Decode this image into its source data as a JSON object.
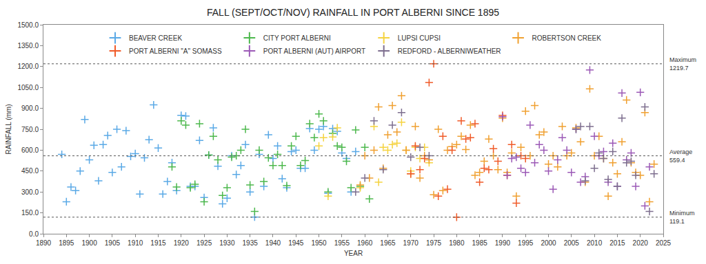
{
  "chart_data": {
    "type": "scatter",
    "title": "FALL (SEPT/OCT/NOV) RAINFALL IN PORT ALBERNI SINCE 1895",
    "x_label": "YEAR",
    "y_label": "RAINFALL (mm)",
    "marker": "cross",
    "grid": false,
    "legend": "top",
    "xlim": [
      1890,
      2025
    ],
    "xticks": [
      1890,
      1895,
      1900,
      1905,
      1910,
      1915,
      1920,
      1925,
      1930,
      1935,
      1940,
      1945,
      1950,
      1955,
      1960,
      1965,
      1970,
      1975,
      1980,
      1985,
      1990,
      1995,
      2000,
      2005,
      2010,
      2015,
      2020,
      2025
    ],
    "ylim": [
      0,
      1500
    ],
    "yticks": [
      {
        "value": 0,
        "label": "0.0"
      },
      {
        "value": 150,
        "label": "150.0"
      },
      {
        "value": 300,
        "label": "300.0"
      },
      {
        "value": 450,
        "label": "450.0"
      },
      {
        "value": 600,
        "label": "600.0"
      },
      {
        "value": 750,
        "label": "750.0"
      },
      {
        "value": 900,
        "label": "900.0"
      },
      {
        "value": 1050,
        "label": "1050.0"
      },
      {
        "value": 1200,
        "label": "1200.0"
      },
      {
        "value": 1350,
        "label": "1350.0"
      },
      {
        "value": 1500,
        "label": "1500.0"
      }
    ],
    "reference_lines": [
      {
        "label": "Maximum",
        "value": 1219.7
      },
      {
        "label": "Average",
        "value": 559.4
      },
      {
        "label": "Minimum",
        "value": 119.1
      }
    ],
    "series": [
      {
        "name": "BEAVER CREEK",
        "color": "#5aa9e6",
        "x": [
          1894,
          1895,
          1896,
          1897,
          1898,
          1899,
          1900,
          1901,
          1902,
          1903,
          1904,
          1905,
          1906,
          1907,
          1908,
          1909,
          1910,
          1911,
          1912,
          1913,
          1914,
          1915,
          1916,
          1917,
          1918,
          1919,
          1920,
          1921,
          1922,
          1923,
          1924,
          1925,
          1926,
          1927,
          1928,
          1929,
          1930,
          1931,
          1932,
          1933,
          1934,
          1935,
          1936,
          1937,
          1938,
          1939,
          1940,
          1941,
          1942,
          1943,
          1944,
          1945,
          1946,
          1947,
          1948,
          1949,
          1950,
          1951,
          1952,
          1953,
          1954,
          1955,
          1956,
          1957,
          1958
        ],
        "values": [
          570,
          230,
          335,
          310,
          450,
          820,
          530,
          635,
          380,
          640,
          705,
          440,
          750,
          480,
          740,
          555,
          575,
          285,
          545,
          675,
          925,
          615,
          285,
          375,
          510,
          310,
          850,
          845,
          340,
          340,
          670,
          260,
          565,
          760,
          485,
          215,
          255,
          560,
          425,
          490,
          640,
          300,
          120,
          570,
          340,
          710,
          540,
          630,
          395,
          330,
          590,
          600,
          470,
          470,
          755,
          600,
          750,
          770,
          290,
          755,
          735,
          580,
          540,
          300,
          590
        ]
      },
      {
        "name": "CITY PORT ALBERNI",
        "color": "#4cb84c",
        "x": [
          1918,
          1919,
          1920,
          1921,
          1922,
          1923,
          1924,
          1925,
          1926,
          1927,
          1928,
          1929,
          1930,
          1931,
          1932,
          1933,
          1934,
          1935,
          1936,
          1937,
          1938,
          1939,
          1940,
          1941,
          1942,
          1943,
          1944,
          1945,
          1946,
          1947,
          1948,
          1949,
          1950,
          1951,
          1952,
          1953,
          1954,
          1955,
          1956,
          1957,
          1958,
          1959,
          1960,
          1961
        ],
        "values": [
          480,
          335,
          810,
          780,
          330,
          355,
          790,
          230,
          565,
          700,
          530,
          275,
          330,
          550,
          560,
          600,
          750,
          350,
          160,
          600,
          375,
          545,
          490,
          570,
          490,
          345,
          630,
          700,
          490,
          525,
          790,
          690,
          860,
          810,
          300,
          720,
          630,
          620,
          520,
          330,
          745,
          340,
          620,
          250
        ]
      },
      {
        "name": "LUPSI CUPSI",
        "color": "#f5d33f",
        "x": [
          1950,
          1951,
          1952,
          1953,
          1954,
          1959,
          1962,
          1963,
          1964,
          1965,
          1966,
          1967,
          1968,
          1969,
          1970,
          1971,
          1972,
          1973,
          1974
        ],
        "values": [
          630,
          690,
          270,
          695,
          760,
          330,
          770,
          370,
          620,
          600,
          640,
          650,
          800,
          600,
          450,
          620,
          540,
          620,
          510
        ]
      },
      {
        "name": "ROBERTSON CREEK",
        "color": "#f0a030",
        "x": [
          1959,
          1960,
          1961,
          1962,
          1963,
          1964,
          1965,
          1966,
          1967,
          1968,
          1969,
          1970,
          1971,
          1972,
          1973,
          1974,
          1975,
          1976,
          1977,
          1978,
          1979,
          1980,
          1981,
          1982,
          1983,
          1984,
          1985,
          1986,
          1987,
          1988,
          1989,
          1990,
          1991,
          1992,
          1993,
          1994,
          1995,
          1996,
          1997,
          1998,
          1999,
          2000,
          2001,
          2002,
          2003,
          2004,
          2005,
          2006,
          2007,
          2008,
          2009,
          2010,
          2011,
          2012,
          2013,
          2014,
          2015,
          2016,
          2017,
          2018,
          2019,
          2020,
          2021,
          2022,
          2023
        ],
        "values": [
          350,
          560,
          400,
          600,
          910,
          470,
          710,
          920,
          730,
          990,
          600,
          430,
          770,
          400,
          560,
          530,
          280,
          750,
          310,
          600,
          625,
          640,
          700,
          605,
          780,
          420,
          440,
          520,
          680,
          560,
          460,
          830,
          440,
          580,
          270,
          620,
          880,
          560,
          920,
          710,
          730,
          500,
          560,
          480,
          770,
          560,
          580,
          760,
          660,
          370,
          1040,
          560,
          700,
          540,
          270,
          510,
          430,
          660,
          960,
          510,
          440,
          420,
          870,
          230,
          500
        ]
      },
      {
        "name": "PORT ALBERNI \"A\" SOMASS",
        "color": "#f05a28",
        "x": [
          1970,
          1971,
          1972,
          1973,
          1974,
          1975,
          1976,
          1977,
          1978,
          1979,
          1980,
          1981,
          1982,
          1983,
          1984,
          1985,
          1986,
          1987,
          1988,
          1989,
          1990,
          1991,
          1992,
          1993,
          1994,
          1995
        ],
        "values": [
          430,
          630,
          460,
          540,
          1085,
          1220,
          270,
          700,
          320,
          600,
          119,
          810,
          680,
          690,
          790,
          370,
          470,
          460,
          610,
          520,
          850,
          420,
          640,
          220,
          560,
          540
        ]
      },
      {
        "name": "PORT ALBERNI (AUT) AIRPORT",
        "color": "#9b59b6",
        "x": [
          1990,
          1991,
          1992,
          1993,
          1994,
          1995,
          1996,
          1997,
          1998,
          1999,
          2000,
          2001,
          2002,
          2003,
          2004,
          2005,
          2006,
          2007,
          2008,
          2009,
          2010,
          2011,
          2012,
          2013,
          2014,
          2015,
          2016,
          2017,
          2018,
          2019,
          2020,
          2021,
          2022
        ],
        "values": [
          840,
          420,
          540,
          550,
          470,
          440,
          780,
          510,
          640,
          600,
          450,
          320,
          530,
          690,
          600,
          440,
          750,
          370,
          410,
          1175,
          700,
          560,
          590,
          370,
          650,
          340,
          1010,
          530,
          580,
          340,
          1015,
          200,
          480
        ]
      },
      {
        "name": "REDFORD - ALBERNIWEATHER",
        "color": "#7d6e8e",
        "x": [
          1958,
          1960,
          1962,
          1964,
          1966,
          1968,
          1970,
          1972,
          1974,
          2006,
          2007,
          2008,
          2009,
          2010,
          2011,
          2012,
          2013,
          2014,
          2015,
          2016,
          2017,
          2018,
          2019,
          2021,
          2022,
          2023
        ],
        "values": [
          300,
          400,
          810,
          460,
          780,
          870,
          550,
          620,
          560,
          750,
          770,
          380,
          770,
          470,
          580,
          540,
          390,
          590,
          340,
          830,
          510,
          520,
          420,
          910,
          160,
          430
        ]
      }
    ]
  }
}
